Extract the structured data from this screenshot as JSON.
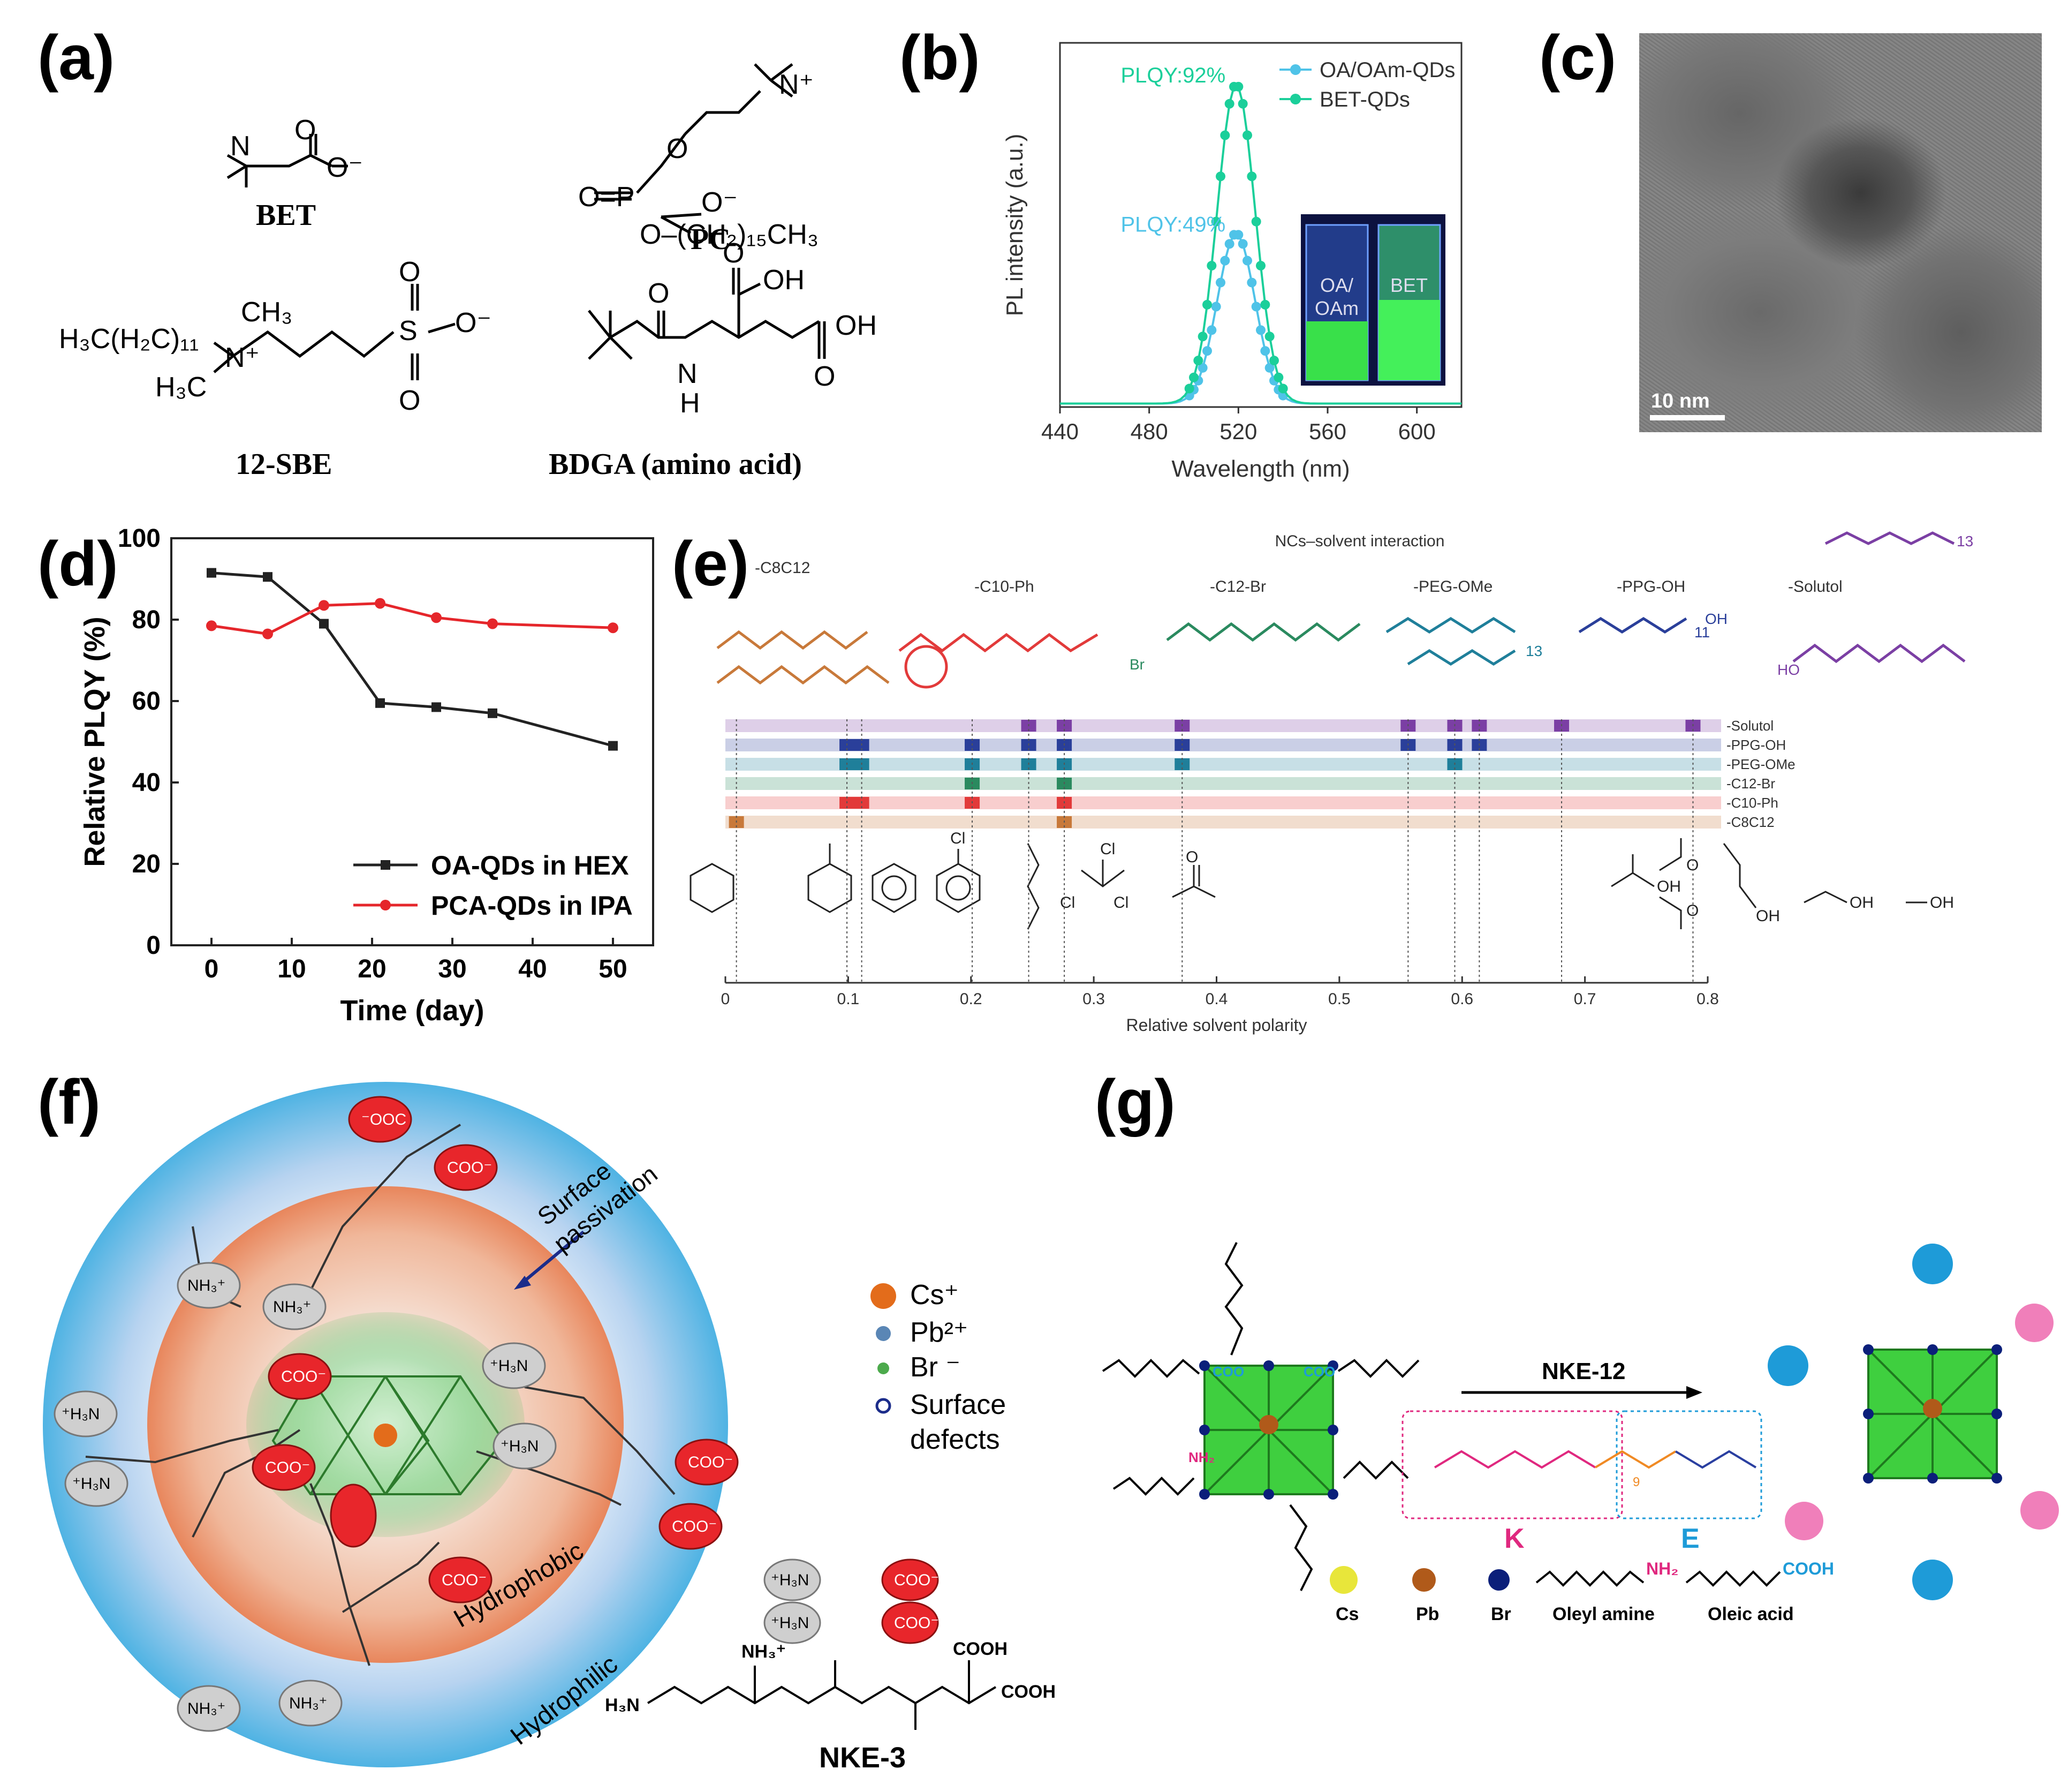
{
  "panels": {
    "a": "(a)",
    "b": "(b)",
    "c": "(c)",
    "d": "(d)",
    "e": "(e)",
    "f": "(f)",
    "g": "(g)"
  },
  "panel_a": {
    "bet_label": "BET",
    "pc_label": "PC",
    "sbe_label": "12-SBE",
    "bdga_label": "BDGA (amino acid)",
    "pc_chain": "O–(CH₂)₁₅CH₃",
    "sbe_chain": "H₃C(H₂C)₁₁",
    "sbe_ch3_top": "CH₃",
    "sbe_h3c": "H₃C",
    "oh": "OH"
  },
  "panel_b": {
    "legend": [
      "OA/OAm-QDs",
      "BET-QDs"
    ],
    "plqy_high": "PLQY:92%",
    "plqy_low": "PLQY:49%",
    "inset_left": "OA/\nOAm",
    "inset_left_1": "OA/",
    "inset_left_2": "OAm",
    "inset_right": "BET"
  },
  "panel_c": {
    "scale_bar": "10 nm"
  },
  "panel_e": {
    "title": "NCs–solvent interaction",
    "ligands": [
      "-C8C12",
      "-C10-Ph",
      "-C12-Br",
      "-PEG-OMe",
      "-PPG-OH",
      "-Solutol"
    ],
    "row_labels": [
      "-Solutol",
      "-PPG-OH",
      "-PEG-OMe",
      "-C12-Br",
      "-C10-Ph",
      "-C8C12"
    ],
    "peg_sub": "13",
    "ppg_sub": "11",
    "solutol_sub": "13",
    "br": "Br",
    "cl": "Cl",
    "oh": "OH",
    "o": "O",
    "ho": "HO"
  },
  "panel_f": {
    "legend": [
      "Cs⁺",
      "Pb²⁺",
      "Br ⁻",
      "Surface",
      "defects"
    ],
    "surface_passivation": [
      "Surface",
      "passivation"
    ],
    "hydrophobic": "Hydrophobic",
    "hydrophilic": "Hydrophilic",
    "coo": "COO⁻",
    "ooc": "⁻OOC",
    "nh3": "NH₃⁺",
    "h3n": "⁺H₃N",
    "nke3": "NKE-3",
    "cooh": "COOH",
    "nh": "H"
  },
  "panel_g": {
    "arrow_label": "NKE-12",
    "k": "K",
    "e": "E",
    "legend": [
      "Cs",
      "Pb",
      "Br",
      "Oleyl amine",
      "Oleic acid"
    ],
    "nh2": "NH₂",
    "cooh": "COOH",
    "coo": "COO",
    "sub9": "9"
  },
  "chart_data": [
    {
      "type": "line",
      "panel": "b",
      "xlabel": "Wavelength (nm)",
      "ylabel": "PL intensity (a.u.)",
      "xlim": [
        440,
        620
      ],
      "xticks": [
        440,
        480,
        520,
        560,
        600
      ],
      "series": [
        {
          "name": "OA/OAm-QDs",
          "color": "#4fc3e8",
          "peak_x": 519,
          "peak_y": 0.49,
          "fwhm": 20
        },
        {
          "name": "BET-QDs",
          "color": "#1bcf9a",
          "peak_x": 519,
          "peak_y": 0.92,
          "fwhm": 20
        }
      ]
    },
    {
      "type": "line",
      "panel": "d",
      "xlabel": "Time (day)",
      "ylabel": "Relative PLQY (%)",
      "xlim": [
        -5,
        55
      ],
      "ylim": [
        0,
        100
      ],
      "xticks": [
        0,
        10,
        20,
        30,
        40,
        50
      ],
      "yticks": [
        0,
        20,
        40,
        60,
        80,
        100
      ],
      "series": [
        {
          "name": "OA-QDs in HEX",
          "color": "#222222",
          "x": [
            0,
            7,
            14,
            21,
            28,
            35,
            50
          ],
          "y": [
            91.5,
            90.5,
            79,
            59.5,
            58.5,
            57,
            49
          ]
        },
        {
          "name": "PCA-QDs in IPA",
          "color": "#e5262b",
          "x": [
            0,
            7,
            14,
            21,
            28,
            35,
            50
          ],
          "y": [
            78.5,
            76.5,
            83.5,
            84,
            80.5,
            79,
            78
          ]
        }
      ]
    },
    {
      "type": "scatter",
      "panel": "e",
      "xlabel": "Relative solvent polarity",
      "xlim": [
        0,
        0.8
      ],
      "xticks": [
        0,
        0.1,
        0.2,
        0.3,
        0.4,
        0.5,
        0.6,
        0.7,
        0.8
      ],
      "solvent_polarity": [
        0.009,
        0.099,
        0.111,
        0.201,
        0.247,
        0.276,
        0.372,
        0.556,
        0.594,
        0.614,
        0.681,
        0.788
      ],
      "rows": [
        {
          "name": "-Solutol",
          "color": "#7b3fa4",
          "points": [
            0.247,
            0.276,
            0.372,
            0.556,
            0.594,
            0.614,
            0.681,
            0.788
          ]
        },
        {
          "name": "-PPG-OH",
          "color": "#2a3f9a",
          "points": [
            0.099,
            0.111,
            0.201,
            0.247,
            0.276,
            0.372,
            0.556,
            0.594,
            0.614
          ]
        },
        {
          "name": "-PEG-OMe",
          "color": "#1f7f9a",
          "points": [
            0.099,
            0.111,
            0.201,
            0.247,
            0.276,
            0.372,
            0.594
          ]
        },
        {
          "name": "-C12-Br",
          "color": "#2a8a5f",
          "points": [
            0.201,
            0.276
          ]
        },
        {
          "name": "-C10-Ph",
          "color": "#e23a3a",
          "points": [
            0.099,
            0.111,
            0.201,
            0.276
          ]
        },
        {
          "name": "-C8C12",
          "color": "#c8793a",
          "points": [
            0.009,
            0.276
          ]
        }
      ]
    }
  ]
}
